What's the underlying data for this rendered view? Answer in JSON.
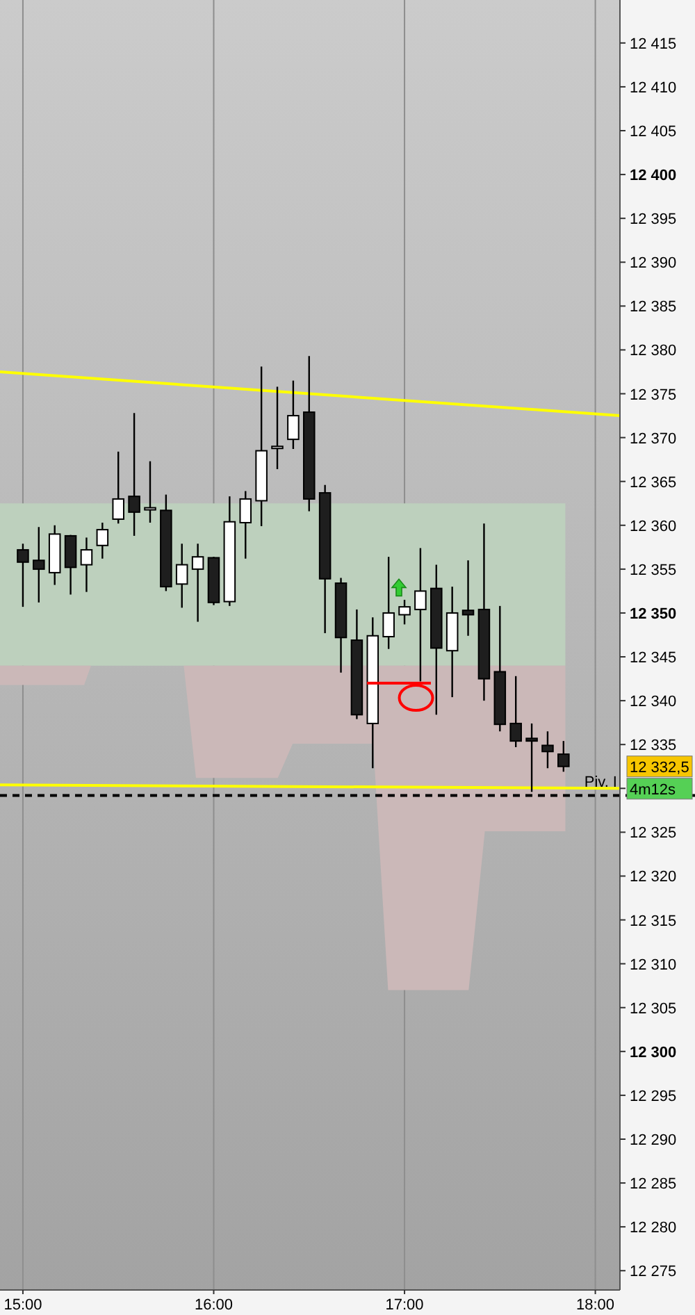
{
  "chart_data": {
    "type": "candlestick",
    "x": [
      15,
      15.0833,
      15.1667,
      15.25,
      15.3333,
      15.4167,
      15.5,
      15.5833,
      15.6667,
      15.75,
      15.8333,
      15.9167,
      16,
      16.0833,
      16.1667,
      16.25,
      16.3333,
      16.4167,
      16.5,
      16.5833,
      16.6667,
      16.75,
      16.8333,
      16.9167,
      17,
      17.0833,
      17.1667,
      17.25,
      17.3333,
      17.4167,
      17.5,
      17.5833,
      17.6667,
      17.75,
      17.8333
    ],
    "ohlc": [
      [
        12357.2,
        12357.9,
        12350.7,
        12355.8
      ],
      [
        12356.0,
        12359.8,
        12351.2,
        12355.0
      ],
      [
        12354.6,
        12360.0,
        12353.2,
        12359.0
      ],
      [
        12358.8,
        12358.9,
        12352.1,
        12355.2
      ],
      [
        12355.5,
        12358.6,
        12352.4,
        12357.2
      ],
      [
        12357.7,
        12360.3,
        12356.2,
        12359.5
      ],
      [
        12360.7,
        12368.4,
        12360.2,
        12363.0
      ],
      [
        12363.3,
        12372.8,
        12358.8,
        12361.5
      ],
      [
        12362.0,
        12367.3,
        12360.3,
        12362.0
      ],
      [
        12361.7,
        12363.5,
        12352.5,
        12353.0
      ],
      [
        12353.3,
        12357.9,
        12350.6,
        12355.5
      ],
      [
        12355.0,
        12357.9,
        12349.0,
        12356.4
      ],
      [
        12356.3,
        12356.4,
        12350.9,
        12351.2
      ],
      [
        12351.3,
        12363.3,
        12350.8,
        12360.4
      ],
      [
        12360.3,
        12363.9,
        12356.2,
        12363.0
      ],
      [
        12362.8,
        12378.1,
        12359.9,
        12368.5
      ],
      [
        12369.0,
        12375.8,
        12366.4,
        12369.0
      ],
      [
        12369.8,
        12376.5,
        12368.7,
        12372.5
      ],
      [
        12372.9,
        12379.3,
        12361.6,
        12363.0
      ],
      [
        12363.7,
        12364.6,
        12347.7,
        12353.9
      ],
      [
        12353.4,
        12354.0,
        12343.2,
        12347.2
      ],
      [
        12346.9,
        12350.4,
        12337.9,
        12338.4
      ],
      [
        12337.4,
        12349.5,
        12332.3,
        12347.4
      ],
      [
        12347.3,
        12356.4,
        12345.9,
        12350.0
      ],
      [
        12349.8,
        12351.5,
        12348.7,
        12350.7
      ],
      [
        12350.4,
        12357.4,
        12342.2,
        12352.5
      ],
      [
        12352.8,
        12355.5,
        12338.4,
        12346.0
      ],
      [
        12345.7,
        12353.0,
        12340.4,
        12350.0
      ],
      [
        12350.3,
        12356.0,
        12347.4,
        12349.8
      ],
      [
        12350.4,
        12360.2,
        12340.0,
        12342.5
      ],
      [
        12343.3,
        12350.8,
        12336.5,
        12337.3
      ],
      [
        12337.4,
        12342.8,
        12334.7,
        12335.4
      ],
      [
        12335.7,
        12337.4,
        12329.6,
        12335.4
      ],
      [
        12334.9,
        12336.5,
        12332.3,
        12334.2
      ],
      [
        12333.9,
        12335.4,
        12331.9,
        12332.5
      ]
    ],
    "series": [
      {
        "type": "area",
        "color": "#bdd0bd",
        "x": [
          14.88,
          17.843
        ],
        "values": [
          null,
          null
        ],
        "upper": [
          12362.5,
          12362.5
        ],
        "lower": [
          12344.0,
          12344.0
        ]
      },
      {
        "type": "area",
        "color": "#cbb8b8",
        "x": [
          14.88,
          15.321,
          15.357,
          15.843,
          15.907,
          16.336,
          16.414,
          16.836,
          16.914,
          17.336,
          17.421,
          17.843
        ],
        "values": [
          null,
          null,
          null,
          null,
          null,
          null,
          null,
          null,
          null,
          null,
          null,
          null
        ],
        "upper": [
          12344.0,
          12344.0,
          12344.0,
          12344.0,
          12344.0,
          12344.0,
          12344.0,
          12344.0,
          12344.0,
          12344.0,
          12344.0,
          12344.0
        ],
        "lower": [
          12341.8,
          12341.8,
          12344.0,
          12344.0,
          12331.2,
          12331.2,
          12335.1,
          12335.1,
          12307.0,
          12307.0,
          12325.1,
          12325.1
        ]
      },
      {
        "type": "line",
        "color": "#ffff00",
        "x": [
          14.88,
          18.129
        ],
        "values": [
          12377.5,
          12372.5
        ]
      },
      {
        "type": "line",
        "color": "#ffff00",
        "x": [
          14.88,
          18.129
        ],
        "values": [
          12330.4,
          12330.0
        ]
      }
    ],
    "ref_lines": [
      {
        "axis": "y",
        "value": 12329.2,
        "label": "Piv. I",
        "color": "#000000",
        "line_style": "dashed"
      }
    ],
    "annotations": [
      "12 332,5",
      "4m12s"
    ],
    "xlim": [
      14.88,
      18.129
    ],
    "xticks": [
      {
        "value": 15,
        "label": "15:00"
      },
      {
        "value": 16,
        "label": "16:00"
      },
      {
        "value": 17,
        "label": "17:00"
      },
      {
        "value": 18,
        "label": "18:00"
      }
    ],
    "ylim": [
      12272.8,
      12419.9
    ],
    "yticks": [
      {
        "value": 12275,
        "label": "12 275"
      },
      {
        "value": 12280,
        "label": "12 280"
      },
      {
        "value": 12285,
        "label": "12 285"
      },
      {
        "value": 12290,
        "label": "12 290"
      },
      {
        "value": 12295,
        "label": "12 295"
      },
      {
        "value": 12300,
        "label": "12 300"
      },
      {
        "value": 12305,
        "label": "12 305"
      },
      {
        "value": 12310,
        "label": "12 310"
      },
      {
        "value": 12315,
        "label": "12 315"
      },
      {
        "value": 12320,
        "label": "12 320"
      },
      {
        "value": 12325,
        "label": "12 325"
      },
      {
        "value": 12330,
        "label": null
      },
      {
        "value": 12335,
        "label": "12 335"
      },
      {
        "value": 12340,
        "label": "12 340"
      },
      {
        "value": 12345,
        "label": "12 345"
      },
      {
        "value": 12350,
        "label": "12 350"
      },
      {
        "value": 12355,
        "label": "12 355"
      },
      {
        "value": 12360,
        "label": "12 360"
      },
      {
        "value": 12365,
        "label": "12 365"
      },
      {
        "value": 12370,
        "label": "12 370"
      },
      {
        "value": 12375,
        "label": "12 375"
      },
      {
        "value": 12380,
        "label": "12 380"
      },
      {
        "value": 12385,
        "label": "12 385"
      },
      {
        "value": 12390,
        "label": "12 390"
      },
      {
        "value": 12395,
        "label": "12 395"
      },
      {
        "value": 12400,
        "label": "12 400"
      },
      {
        "value": 12405,
        "label": "12 405"
      },
      {
        "value": 12410,
        "label": "12 410"
      },
      {
        "value": 12415,
        "label": "12 415"
      }
    ],
    "grid": "x"
  }
}
